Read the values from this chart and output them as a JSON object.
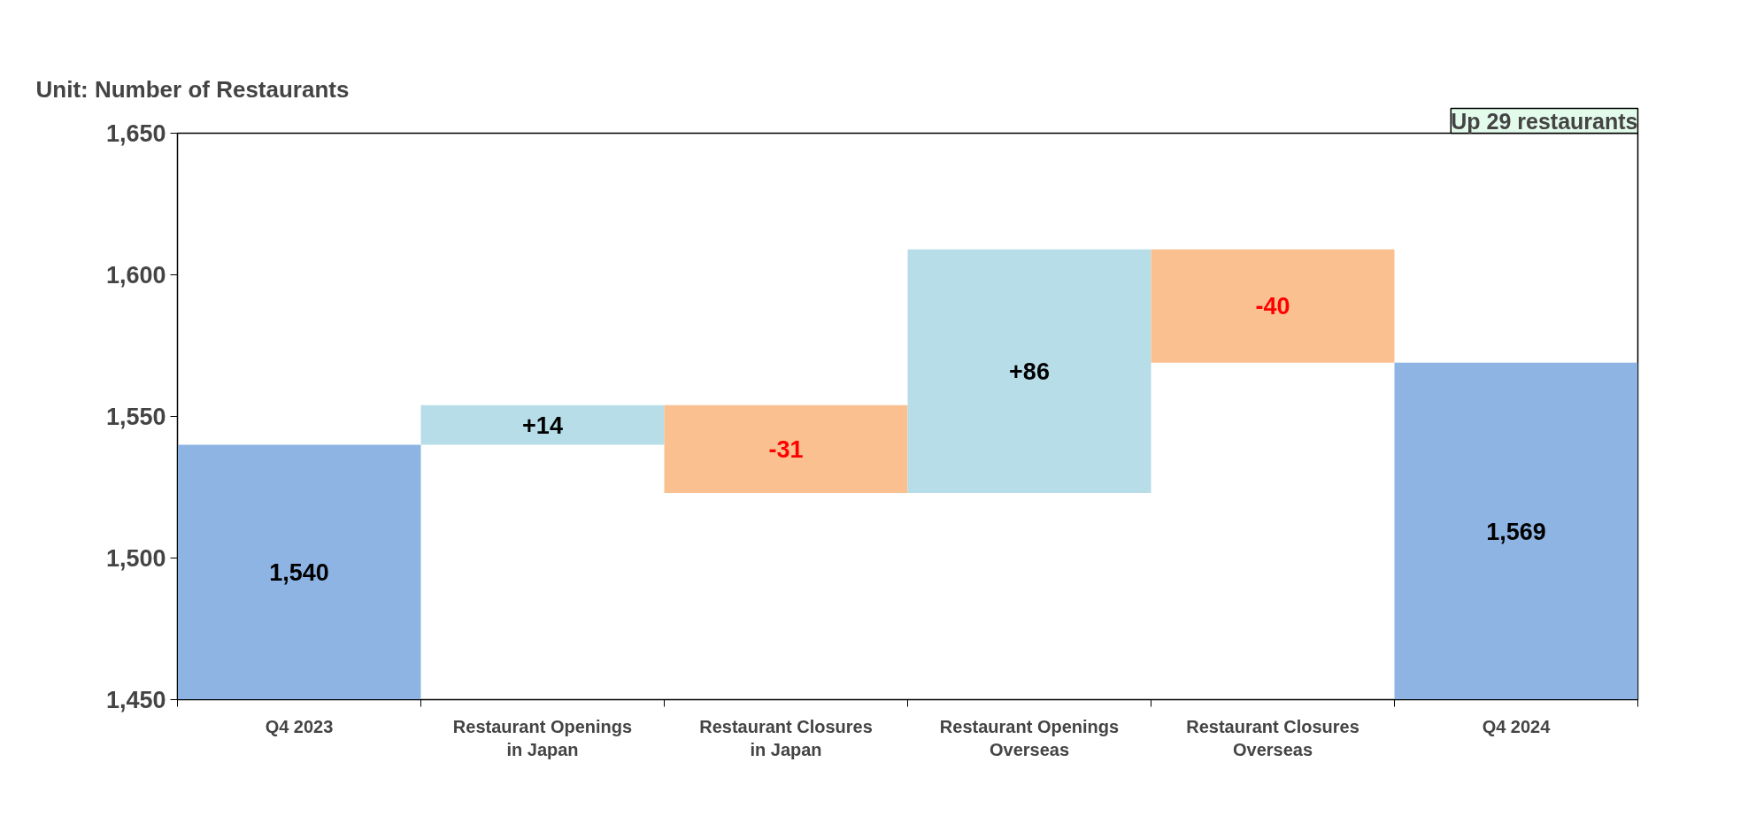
{
  "chart_data": {
    "type": "bar",
    "title": "Unit: Number of Restaurants",
    "categories": [
      "Q4 2023",
      "Restaurant Openings in Japan",
      "Restaurant Closures in Japan",
      "Restaurant Openings Overseas",
      "Restaurant Closures Overseas",
      "Q4 2024"
    ],
    "values": [
      1540,
      14,
      -31,
      86,
      -40,
      1569
    ],
    "base": [
      null,
      1540,
      1554,
      1523,
      1609,
      null
    ],
    "colors": [
      "#8eb4e3",
      "#b7dde8",
      "#fac090",
      "#b7dde8",
      "#fac090",
      "#8eb4e3"
    ],
    "value_labels": [
      "1,540",
      "+14",
      "-31",
      "+86",
      "-40",
      "1,569"
    ],
    "ylim": [
      1450,
      1650
    ],
    "yticks": [
      {
        "value": 1450,
        "label": "1,450"
      },
      {
        "value": 1500,
        "label": "1,500"
      },
      {
        "value": 1550,
        "label": "1,550"
      },
      {
        "value": 1600,
        "label": "1,600"
      },
      {
        "value": 1650,
        "label": "1,650"
      }
    ],
    "annotations": [
      "Up 29 restaurants"
    ],
    "grid": false
  }
}
